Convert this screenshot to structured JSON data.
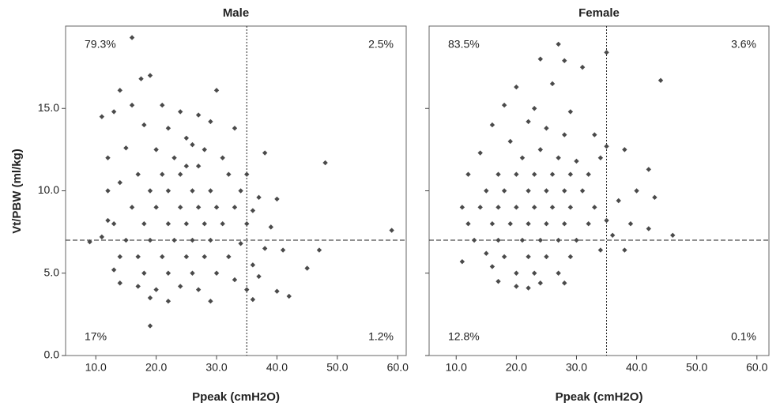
{
  "chart_data": [
    {
      "type": "scatter",
      "title": "Male",
      "x_label": "Ppeak (cmH2O)",
      "y_label": "Vt/PBW (ml/kg)",
      "color": "#4a4a4a",
      "xlim": [
        5,
        61.4
      ],
      "ylim": [
        0,
        20
      ],
      "xticks": [
        {
          "value": 10,
          "label": "10.0"
        },
        {
          "value": 20,
          "label": "20.0"
        },
        {
          "value": 30,
          "label": "30.0"
        },
        {
          "value": 40,
          "label": "40.0"
        },
        {
          "value": 50,
          "label": "50.0"
        },
        {
          "value": 60,
          "label": "60.0"
        }
      ],
      "yticks": [
        {
          "value": 0,
          "label": "0.0"
        },
        {
          "value": 5,
          "label": "5.0"
        },
        {
          "value": 10,
          "label": "10.0"
        },
        {
          "value": 15,
          "label": "15.0"
        }
      ],
      "vline": 35,
      "hline": 7,
      "annotations": [
        {
          "text": "79.3%",
          "corner": "top-left"
        },
        {
          "text": "2.5%",
          "corner": "top-right"
        },
        {
          "text": "17%",
          "corner": "bottom-left"
        },
        {
          "text": "1.2%",
          "corner": "bottom-right"
        }
      ],
      "x": [
        16,
        17.5,
        19,
        14,
        30,
        11,
        13,
        16,
        21,
        24,
        27,
        29,
        33,
        18,
        22,
        25,
        26,
        28,
        20,
        15,
        12,
        23,
        31,
        38,
        48,
        35,
        32,
        27,
        25,
        24,
        21,
        17,
        14,
        12,
        19,
        22,
        26,
        29,
        34,
        37,
        40,
        16,
        20,
        24,
        27,
        30,
        33,
        36,
        12,
        13,
        18,
        22,
        25,
        28,
        31,
        35,
        39,
        59,
        9,
        11,
        15,
        19,
        23,
        26,
        29,
        34,
        38,
        41,
        47,
        14,
        17,
        21,
        25,
        28,
        32,
        36,
        45,
        13,
        18,
        22,
        26,
        30,
        33,
        37,
        14,
        17,
        20,
        24,
        27,
        35,
        40,
        42,
        19,
        22,
        29,
        36,
        19
      ],
      "y": [
        19.3,
        16.8,
        17,
        16.1,
        16.1,
        14.5,
        14.8,
        15.2,
        15.2,
        14.8,
        14.6,
        14.2,
        13.8,
        14,
        13.8,
        13.2,
        12.8,
        12.5,
        12.5,
        12.6,
        12,
        12,
        12,
        12.3,
        11.7,
        11,
        11,
        11.5,
        11.5,
        11,
        11,
        11,
        10.5,
        10,
        10,
        10,
        10,
        10,
        10,
        9.6,
        9.5,
        9,
        9,
        9,
        9,
        9,
        9,
        8.8,
        8.2,
        8,
        8,
        8,
        8,
        8,
        8,
        8,
        7.8,
        7.6,
        6.9,
        7.2,
        7,
        7,
        7,
        7,
        7,
        6.8,
        6.5,
        6.4,
        6.4,
        6,
        6,
        6,
        6,
        6,
        6,
        5.5,
        5.3,
        5.2,
        5,
        5,
        5,
        5,
        4.6,
        4.8,
        4.4,
        4.2,
        4,
        4.2,
        4,
        4,
        3.9,
        3.6,
        3.5,
        3.3,
        3.3,
        3.4,
        1.8
      ]
    },
    {
      "type": "scatter",
      "title": "Female",
      "x_label": "Ppeak (cmH2O)",
      "color": "#4a4a4a",
      "xlim": [
        5.5,
        62
      ],
      "ylim": [
        0,
        20
      ],
      "xticks": [
        {
          "value": 10,
          "label": "10.0"
        },
        {
          "value": 20,
          "label": "20.0"
        },
        {
          "value": 30,
          "label": "30.0"
        },
        {
          "value": 40,
          "label": "40.0"
        },
        {
          "value": 50,
          "label": "50.0"
        },
        {
          "value": 60,
          "label": "60.0"
        }
      ],
      "vline": 35,
      "hline": 7,
      "annotations": [
        {
          "text": "83.5%",
          "corner": "top-left"
        },
        {
          "text": "3.6%",
          "corner": "top-right"
        },
        {
          "text": "12.8%",
          "corner": "bottom-left"
        },
        {
          "text": "0.1%",
          "corner": "bottom-right"
        }
      ],
      "x": [
        27,
        35,
        24,
        28,
        31,
        44,
        20,
        26,
        18,
        23,
        29,
        16,
        22,
        25,
        28,
        33,
        35,
        38,
        19,
        14,
        21,
        24,
        27,
        30,
        34,
        42,
        12,
        17,
        20,
        23,
        26,
        29,
        32,
        15,
        18,
        22,
        25,
        28,
        31,
        40,
        11,
        14,
        17,
        20,
        23,
        26,
        29,
        33,
        37,
        43,
        12,
        16,
        19,
        22,
        25,
        28,
        32,
        35,
        39,
        42,
        13,
        17,
        21,
        24,
        27,
        30,
        36,
        46,
        15,
        18,
        22,
        25,
        29,
        34,
        38,
        16,
        20,
        23,
        27,
        17,
        20,
        24,
        28,
        22,
        11
      ],
      "y": [
        18.9,
        18.4,
        18,
        17.9,
        17.5,
        16.7,
        16.3,
        16.5,
        15.2,
        15,
        14.8,
        14,
        14.2,
        13.8,
        13.4,
        13.4,
        12.7,
        12.5,
        13,
        12.3,
        12,
        12.5,
        12,
        11.8,
        12,
        11.3,
        11,
        11,
        11,
        11,
        11,
        11,
        11,
        10,
        10,
        10,
        10,
        10,
        10,
        10,
        9,
        9,
        9,
        9,
        9,
        9,
        9,
        9,
        9.4,
        9.6,
        8,
        8,
        8,
        8,
        8,
        8,
        8,
        8.2,
        8,
        7.7,
        7,
        7,
        7,
        7,
        7,
        7,
        7.3,
        7.3,
        6.2,
        6,
        6,
        6,
        6,
        6.4,
        6.4,
        5.4,
        5,
        5,
        5,
        4.5,
        4.2,
        4.4,
        4.4,
        4.1,
        5.7
      ]
    }
  ]
}
